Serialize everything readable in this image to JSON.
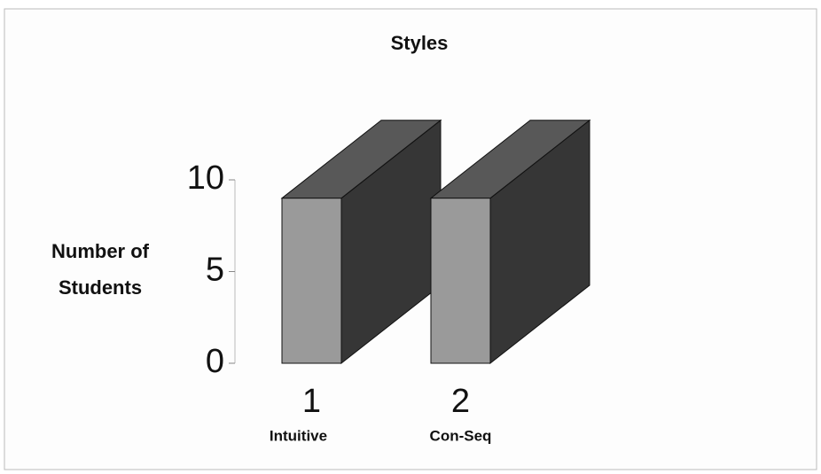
{
  "chart_data": {
    "type": "bar3d",
    "title": "Styles",
    "y_label": [
      "Number of",
      "Students"
    ],
    "categories": [
      "1",
      "2"
    ],
    "category_labels": [
      "Intuitive",
      "Con-Seq"
    ],
    "values": [
      9,
      9
    ],
    "colors": {
      "front": "#9a9a9a",
      "top": "#585858",
      "side": "#363636"
    },
    "ylim": [
      0,
      10
    ],
    "yticks": [
      0,
      5,
      10
    ]
  }
}
